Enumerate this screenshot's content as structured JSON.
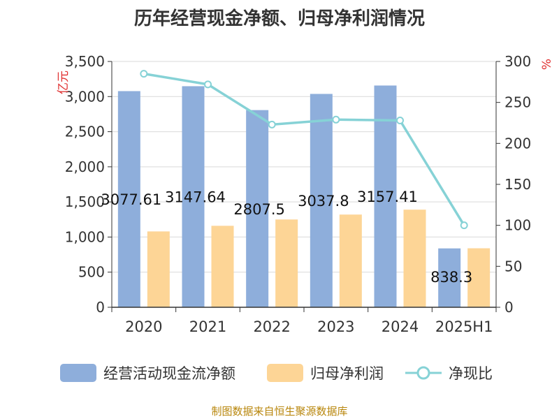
{
  "title": "历年经营现金净额、归母净利润情况",
  "source": "制图数据来自恒生聚源数据库",
  "colors": {
    "cash": "#8eaedb",
    "profit": "#fdd596",
    "ratio": "#86d2d6",
    "axis": "#333333",
    "unit": "#e03030"
  },
  "chart_data": {
    "type": "bar",
    "categories": [
      "2020",
      "2021",
      "2022",
      "2023",
      "2024",
      "2025H1"
    ],
    "series": [
      {
        "name": "经营活动现金流净额",
        "type": "bar",
        "axis": "left",
        "values": [
          3077.61,
          3147.64,
          2807.5,
          3037.8,
          3157.41,
          838.3
        ],
        "labels": [
          "3077.61",
          "3147.64",
          "2807.5",
          "3037.8",
          "3157.41",
          "838.3"
        ]
      },
      {
        "name": "归母净利润",
        "type": "bar",
        "axis": "left",
        "values": [
          1080,
          1160,
          1250,
          1320,
          1390,
          840
        ]
      },
      {
        "name": "净现比",
        "type": "line",
        "axis": "right",
        "values": [
          285,
          272,
          223,
          229,
          228,
          100
        ]
      }
    ],
    "y_left": {
      "unit": "亿元",
      "min": 0,
      "max": 3500,
      "step": 500,
      "ticks": [
        "0",
        "500",
        "1,000",
        "1,500",
        "2,000",
        "2,500",
        "3,000",
        "3,500"
      ]
    },
    "y_right": {
      "unit": "%",
      "min": 0,
      "max": 300,
      "step": 50,
      "ticks": [
        "0",
        "50",
        "100",
        "150",
        "200",
        "250",
        "300"
      ]
    },
    "grid": true,
    "legend_position": "bottom"
  }
}
